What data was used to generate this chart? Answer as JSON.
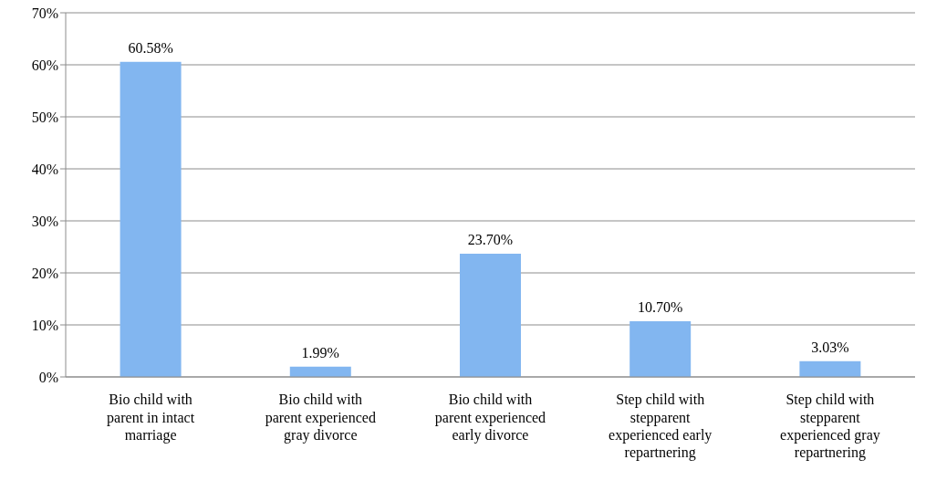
{
  "chart_data": {
    "type": "bar",
    "categories": [
      "Bio child with parent in intact marriage",
      "Bio child with parent experienced gray divorce",
      "Bio child with parent experienced early divorce",
      "Step child with stepparent experienced early repartnering",
      "Step child with stepparent experienced gray repartnering"
    ],
    "values": [
      60.58,
      1.99,
      23.7,
      10.7,
      3.03
    ],
    "value_labels": [
      "60.58%",
      "1.99%",
      "23.70%",
      "10.70%",
      "3.03%"
    ],
    "color": "#82b6f0",
    "ylim": [
      0,
      70
    ],
    "yticks": [
      {
        "value": 0,
        "label": "0%"
      },
      {
        "value": 10,
        "label": "10%"
      },
      {
        "value": 20,
        "label": "20%"
      },
      {
        "value": 30,
        "label": "30%"
      },
      {
        "value": 40,
        "label": "40%"
      },
      {
        "value": 50,
        "label": "50%"
      },
      {
        "value": 60,
        "label": "60%"
      },
      {
        "value": 70,
        "label": "70%"
      }
    ],
    "grid": "y"
  }
}
